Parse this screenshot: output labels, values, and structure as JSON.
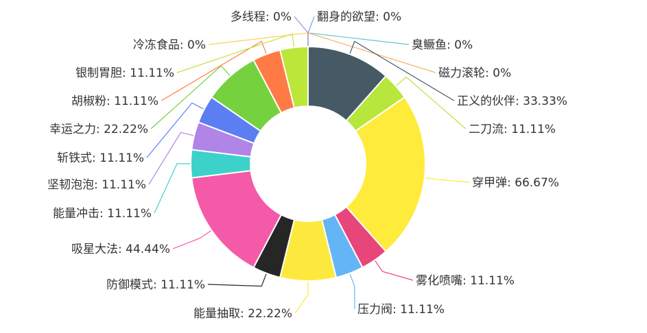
{
  "chart_data": {
    "type": "pie",
    "variant": "donut",
    "legend": "none",
    "slices": [
      {
        "label": "翻身的欲望: 0%",
        "value": 0,
        "color": "#6fa8dc",
        "show": false
      },
      {
        "label": "臭鳜鱼: 0%",
        "value": 0,
        "color": "#5bc6c8",
        "show": false
      },
      {
        "label": "磁力滚轮: 0%",
        "value": 0,
        "color": "#f6b26b",
        "show": false
      },
      {
        "label": "正义的伙伴: 33.33%",
        "value": 33.33,
        "color": "#455a64",
        "show": true
      },
      {
        "label": "二刀流: 11.11%",
        "value": 11.11,
        "color": "#b7e63c",
        "show": true
      },
      {
        "label": "穿甲弹: 66.67%",
        "value": 66.67,
        "color": "#ffeb3b",
        "show": true
      },
      {
        "label": "雾化喷嘴: 11.11%",
        "value": 11.11,
        "color": "#e8457a",
        "show": true
      },
      {
        "label": "压力阀: 11.11%",
        "value": 11.11,
        "color": "#64b5f6",
        "show": true
      },
      {
        "label": "能量抽取: 22.22%",
        "value": 22.22,
        "color": "#fde93d",
        "show": true
      },
      {
        "label": "防御模式: 11.11%",
        "value": 11.11,
        "color": "#262626",
        "show": true
      },
      {
        "label": "吸星大法: 44.44%",
        "value": 44.44,
        "color": "#f45aa8",
        "show": true
      },
      {
        "label": "能量冲击: 11.11%",
        "value": 11.11,
        "color": "#3dd1cb",
        "show": true
      },
      {
        "label": "坚韧泡泡: 11.11%",
        "value": 11.11,
        "color": "#b184e8",
        "show": true
      },
      {
        "label": "斩铁式: 11.11%",
        "value": 11.11,
        "color": "#5b7ff2",
        "show": true
      },
      {
        "label": "幸运之力: 22.22%",
        "value": 22.22,
        "color": "#76d13f",
        "show": true
      },
      {
        "label": "胡椒粉: 11.11%",
        "value": 11.11,
        "color": "#ff7a45",
        "show": true
      },
      {
        "label": "银制胃胆: 11.11%",
        "value": 11.11,
        "color": "#bde63a",
        "show": true
      },
      {
        "label": "冷冻食品: 0%",
        "value": 0,
        "color": "#f9d34b",
        "show": false
      },
      {
        "label": "多线程: 0%",
        "value": 0,
        "color": "#a88ad6",
        "show": false
      }
    ]
  }
}
